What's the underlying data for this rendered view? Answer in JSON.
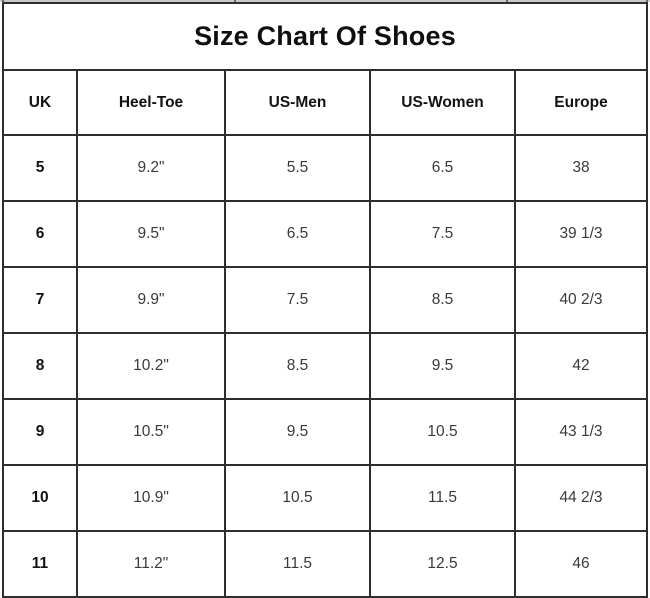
{
  "chart_data": {
    "type": "table",
    "title": "Size Chart Of Shoes",
    "columns": [
      "UK",
      "Heel-Toe",
      "US-Men",
      "US-Women",
      "Europe"
    ],
    "rows": [
      [
        "5",
        "9.2\"",
        "5.5",
        "6.5",
        "38"
      ],
      [
        "6",
        "9.5\"",
        "6.5",
        "7.5",
        "39 1/3"
      ],
      [
        "7",
        "9.9\"",
        "7.5",
        "8.5",
        "40 2/3"
      ],
      [
        "8",
        "10.2\"",
        "8.5",
        "9.5",
        "42"
      ],
      [
        "9",
        "10.5\"",
        "9.5",
        "10.5",
        "43 1/3"
      ],
      [
        "10",
        "10.9\"",
        "10.5",
        "11.5",
        "44 2/3"
      ],
      [
        "11",
        "11.2\"",
        "11.5",
        "12.5",
        "46"
      ]
    ],
    "layout_hints": {
      "grid": "on",
      "header_row_bold": true,
      "first_column_bold": true
    }
  },
  "colors": {
    "border": "#2e2e2e",
    "title_text": "#0f0f0f",
    "header_text": "#121212",
    "cell_text": "#3a3a3a",
    "background": "#ffffff",
    "sheet_gridline": "#c9c9c9"
  }
}
